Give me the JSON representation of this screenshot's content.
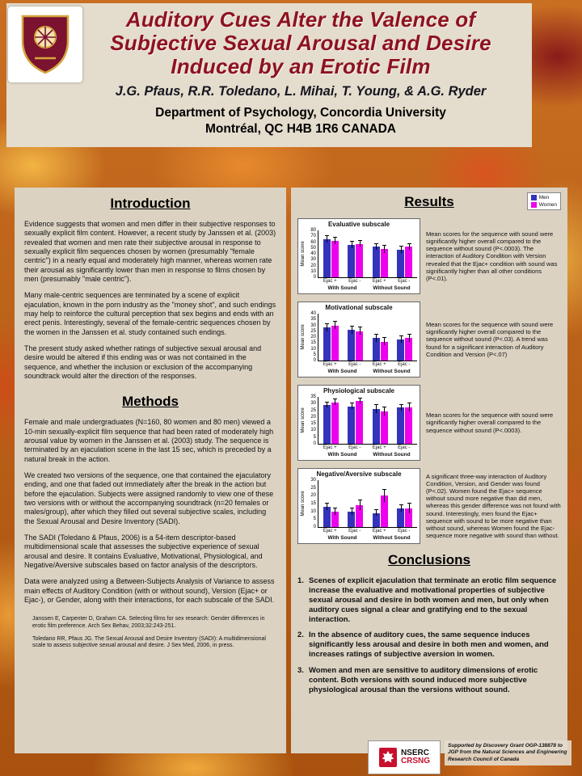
{
  "header": {
    "title_lines": [
      "Auditory Cues Alter the Valence of",
      "Subjective Sexual Arousal and Desire",
      "Induced by an Erotic Film"
    ],
    "authors": "J.G. Pfaus, R.R. Toledano, L. Mihai, T. Young, & A.G. Ryder",
    "department": "Department of Psychology, Concordia University",
    "address": "Montréal, QC H4B 1R6 CANADA"
  },
  "introduction": {
    "heading": "Introduction",
    "paragraphs": [
      "Evidence suggests that women and men differ in their subjective responses to sexually explicit film content.  However, a recent study by Janssen et al. (2003) revealed that women and men rate their subjective arousal in response to sexually explicit film sequences chosen by women (presumably \"female centric\") in a nearly equal and moderately high manner, whereas women rate their arousal as significantly lower than men in response to films chosen by men (presumably \"male centric\").",
      "Many male-centric sequences are terminated by a scene of explicit ejaculation, known in the porn industry as the \"money shot\", and such endings may help to reinforce the cultural perception that sex begins and ends with an erect penis.  Interestingly, several of the female-centric sequences chosen by the women in the Janssen et al. study contained such endings.",
      "The present study asked whether ratings of subjective sexual arousal and desire would be altered if this ending was or was not contained in the sequence, and whether the inclusion or exclusion of the accompanying soundtrack would alter the direction of the responses."
    ]
  },
  "methods": {
    "heading": "Methods",
    "paragraphs": [
      "Female and male undergraduates (N=160, 80 women and 80 men) viewed a 10-min sexually-explicit film sequence that had been rated of moderately high arousal value by women in the Janssen et al. (2003) study.  The sequence is terminated by an ejaculation scene in the last 15 sec, which is preceded by a natural break in the action.",
      "We created two versions of the sequence, one that contained the ejaculatory ending, and one that faded out immediately after the break in the action but before the ejaculation. Subjects were assigned randomly to view one of these two versions with or without the accompanying soundtrack (n=20 females or males/group), after which they filled out several subjective scales, including the Sexual Arousal and Desire Inventory (SADI).",
      "The SADI (Toledano & Pfaus, 2006) is a 54-item descriptor-based multidimensional scale that assesses the subjective experience of sexual arousal and desire.  It contains Evaluative, Motivational, Physiological, and Negative/Aversive subscales based on factor analysis of the descriptors.",
      "Data were analyzed using a Between-Subjects Analysis of Variance to assess main effects of Auditory Condition (with or without sound), Version (Ejac+ or Ejac-), or Gender, along with their interactions, for each subscale of the SADI."
    ]
  },
  "references": [
    "Janssen E, Carpenter D, Graham CA. Selecting films for sex research: Gender differences in erotic film preference.  Arch Sex Behav, 2003;32:243-251.",
    "Toledano RR, Pfaus JG. The Sexual Arousal and Desire Inventory (SADI): A multidimensional scale to assess subjective sexual arousal and desire. J Sex Med, 2006, in press."
  ],
  "results": {
    "heading": "Results",
    "legend": {
      "men": "Men",
      "women": "Women"
    },
    "panels": [
      {
        "note": "Mean scores for the sequence with sound were significantly higher overall compared to the sequence without sound (P<.0003).  The interaction of Auditory Condition with Version revealed that the Ejac+ condition with sound was significantly higher than all other conditions (P<.01)."
      },
      {
        "note": "Mean scores for the sequence with sound were significantly higher overall compared to the sequence without sound (P<.03).  A trend was found for a significant interaction of Auditory Condition and Version (P<.07)"
      },
      {
        "note": "Mean scores for the sequence with sound were significantly higher overall compared to the sequence without sound (P<.0003)."
      },
      {
        "note": "A significant three-way interaction of Auditory Condition, Version, and Gender was found (P<.02).  Women found the Ejac+ sequence without sound more negative than did men, whereas this gender difference was not found with sound.  Interestingly, men found the Ejac+ sequence with sound to be more negative than without sound, whereas Women found the Ejac- sequence more negative with sound than without."
      }
    ]
  },
  "chart_data": [
    {
      "type": "bar",
      "title": "Evaluative subscale",
      "ylabel": "Mean score",
      "ylim": [
        0,
        80
      ],
      "yticks": [
        0,
        10,
        20,
        30,
        40,
        50,
        60,
        70,
        80
      ],
      "categories": [
        "Ejac +",
        "Ejac -",
        "Ejac +",
        "Ejac -"
      ],
      "group_labels": [
        "With Sound",
        "Without Sound"
      ],
      "series": [
        {
          "name": "Men",
          "values": [
            65,
            55,
            52,
            47
          ],
          "errors": [
            5,
            6,
            5,
            5
          ]
        },
        {
          "name": "Women",
          "values": [
            62,
            57,
            48,
            52
          ],
          "errors": [
            5,
            5,
            6,
            5
          ]
        }
      ]
    },
    {
      "type": "bar",
      "title": "Motivational subscale",
      "ylabel": "Mean score",
      "ylim": [
        0,
        40
      ],
      "yticks": [
        0,
        5,
        10,
        15,
        20,
        25,
        30,
        35,
        40
      ],
      "categories": [
        "Ejac +",
        "Ejac -",
        "Ejac +",
        "Ejac -"
      ],
      "group_labels": [
        "With Sound",
        "Without Sound"
      ],
      "series": [
        {
          "name": "Men",
          "values": [
            28,
            26,
            19,
            18
          ],
          "errors": [
            3,
            3,
            3,
            3
          ]
        },
        {
          "name": "Women",
          "values": [
            30,
            25,
            16,
            19
          ],
          "errors": [
            3,
            3,
            3,
            3
          ]
        }
      ]
    },
    {
      "type": "bar",
      "title": "Physiological subscale",
      "ylabel": "Mean score",
      "ylim": [
        0,
        35
      ],
      "yticks": [
        0,
        5,
        10,
        15,
        20,
        25,
        30,
        35
      ],
      "categories": [
        "Ejac +",
        "Ejac -",
        "Ejac +",
        "Ejac -"
      ],
      "group_labels": [
        "With Sound",
        "Without Sound"
      ],
      "series": [
        {
          "name": "Men",
          "values": [
            29,
            28,
            26,
            27
          ],
          "errors": [
            2,
            2,
            3,
            2
          ]
        },
        {
          "name": "Women",
          "values": [
            31,
            32,
            24,
            27
          ],
          "errors": [
            2,
            2,
            3,
            3
          ]
        }
      ]
    },
    {
      "type": "bar",
      "title": "Negative/Aversive subscale",
      "ylabel": "Mean score",
      "ylim": [
        0,
        30
      ],
      "yticks": [
        0,
        5,
        10,
        15,
        20,
        25,
        30
      ],
      "categories": [
        "Ejac +",
        "Ejac -",
        "Ejac +",
        "Ejac -"
      ],
      "group_labels": [
        "With Sound",
        "Without Sound"
      ],
      "series": [
        {
          "name": "Men",
          "values": [
            13,
            10,
            9,
            12
          ],
          "errors": [
            2,
            2,
            2,
            2
          ]
        },
        {
          "name": "Women",
          "values": [
            10,
            14,
            20,
            12
          ],
          "errors": [
            2,
            3,
            4,
            3
          ]
        }
      ]
    }
  ],
  "conclusions": {
    "heading": "Conclusions",
    "items": [
      {
        "num": "1.",
        "text": "Scenes of explicit ejaculation that terminate an erotic film sequence increase the evaluative and motivational properties of subjective sexual arousal and desire in both women and men, but only when auditory cues signal a clear and gratifying end to the sexual interaction."
      },
      {
        "num": "2.",
        "text": "In the absence of auditory cues, the same sequence induces significantly less arousal and desire in both men and women, and increases ratings of subjective aversion in women."
      },
      {
        "num": "3.",
        "text": "Women and men are sensitive to auditory dimensions of erotic content.  Both versions with sound induced more subjective physiological arousal than the versions without sound."
      }
    ]
  },
  "footer": {
    "support": "Supported by Discovery Grant OGP-138878 to JGP from the Natural Sciences and Engineering Research Council of Canada",
    "logo_top": "NSERC",
    "logo_bottom": "CRSNG"
  },
  "colors": {
    "men": "#3333bb",
    "women": "#ee00ee",
    "title": "#8e1220"
  }
}
